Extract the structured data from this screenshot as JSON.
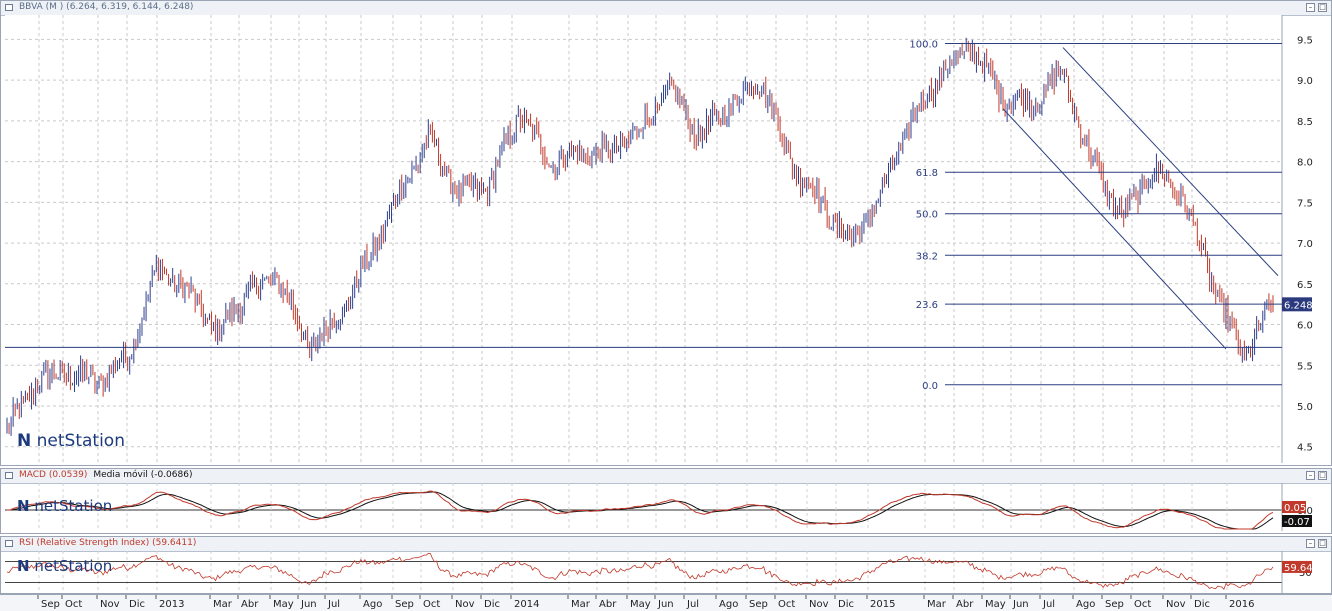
{
  "main": {
    "title": "BBVA (M ) (6.264, 6.319, 6.144, 6.248)",
    "y_ticks": [
      "9.5",
      "9.0",
      "8.5",
      "8.0",
      "7.5",
      "7.0",
      "6.5",
      "6.0",
      "5.5",
      "5.0",
      "4.5"
    ],
    "last_price": "6.248",
    "fib_levels": [
      "100.0",
      "61.8",
      "50.0",
      "38.2",
      "23.6",
      "0.0"
    ],
    "watermark": "netStation"
  },
  "macd": {
    "title": "MACD (0.0539)",
    "title_secondary": "Media móvil (-0.0686)",
    "y_tick": "0.0",
    "macd_value": "0.05",
    "signal_value": "-0.07",
    "watermark": "netStation"
  },
  "rsi": {
    "title": "RSI (Relative Strength Index) (59.6411)",
    "y_tick": "50",
    "value": "59.64",
    "watermark": "netStation"
  },
  "x_axis": {
    "labels": [
      "Sep",
      "Oct",
      "Nov",
      "Dic",
      "2013",
      "Mar",
      "Abr",
      "May",
      "Jun",
      "Jul",
      "Ago",
      "Sep",
      "Oct",
      "Nov",
      "Dic",
      "2014",
      "Mar",
      "Abr",
      "May",
      "Jun",
      "Jul",
      "Ago",
      "Sep",
      "Oct",
      "Nov",
      "Dic",
      "2015",
      "Mar",
      "Abr",
      "May",
      "Jun",
      "Jul",
      "Ago",
      "Sep",
      "Oct",
      "Nov",
      "Dic",
      "2016"
    ]
  },
  "chart_data": {
    "type": "line",
    "title": "BBVA (M ) (6.264, 6.319, 6.144, 6.248)",
    "x": [
      "2012-08",
      "2012-09",
      "2012-10",
      "2012-11",
      "2012-12",
      "2013-01",
      "2013-02",
      "2013-03",
      "2013-04",
      "2013-05",
      "2013-06",
      "2013-07",
      "2013-08",
      "2013-09",
      "2013-10",
      "2013-11",
      "2013-12",
      "2014-01",
      "2014-02",
      "2014-03",
      "2014-04",
      "2014-05",
      "2014-06",
      "2014-07",
      "2014-08",
      "2014-09",
      "2014-10",
      "2014-11",
      "2014-12",
      "2015-01",
      "2015-02",
      "2015-03",
      "2015-04",
      "2015-05",
      "2015-06",
      "2015-07",
      "2015-08",
      "2015-09",
      "2015-10",
      "2015-11",
      "2015-12",
      "2016-01",
      "2016-02"
    ],
    "series": [
      {
        "values": [
          4.7,
          5.3,
          5.4,
          5.3,
          5.6,
          6.7,
          6.4,
          5.9,
          6.4,
          6.6,
          5.7,
          6.1,
          6.8,
          7.6,
          8.3,
          7.6,
          7.7,
          8.6,
          8.0,
          8.1,
          8.1,
          8.4,
          8.9,
          8.3,
          8.7,
          9.0,
          8.0,
          7.5,
          7.0,
          7.6,
          8.5,
          9.1,
          9.4,
          8.8,
          8.7,
          9.1,
          8.0,
          7.3,
          7.9,
          7.6,
          6.5,
          5.6,
          6.25
        ]
      }
    ],
    "ylim": [
      4.3,
      9.8
    ],
    "fibonacci": {
      "levels": [
        100.0,
        61.8,
        50.0,
        38.2,
        23.6,
        0.0
      ],
      "values": [
        9.45,
        7.87,
        7.36,
        6.85,
        6.25,
        5.26
      ]
    },
    "support_line": 5.72,
    "macd": {
      "macd": 0.0539,
      "signal": -0.0686,
      "y_tick": 0.0
    },
    "rsi": {
      "value": 59.6411,
      "y_tick": 50
    },
    "grid": true
  }
}
